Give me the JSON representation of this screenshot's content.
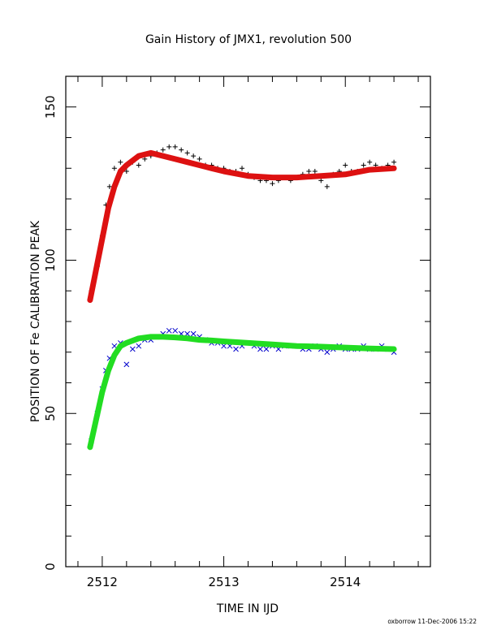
{
  "chart_data": {
    "type": "scatter",
    "title": "Gain History of JMX1, revolution 500",
    "xlabel": "TIME IN IJD",
    "ylabel": "POSITION OF Fe CALIBRATION PEAK",
    "xlim": [
      2511.7,
      2514.7
    ],
    "ylim": [
      0,
      160
    ],
    "x_ticks": [
      "2512",
      "2513",
      "2514"
    ],
    "y_ticks": [
      "0",
      "50",
      "100",
      "150"
    ],
    "grid": false,
    "legend": "none",
    "footer": "oxborrow 11-Dec-2006 15:22",
    "series": [
      {
        "marker": "plus",
        "color": "#000000",
        "x": [
          2511.91,
          2511.96,
          2512.0,
          2512.03,
          2512.06,
          2512.1,
          2512.15,
          2512.2,
          2512.25,
          2512.3,
          2512.35,
          2512.4,
          2512.45,
          2512.5,
          2512.55,
          2512.6,
          2512.65,
          2512.7,
          2512.75,
          2512.8,
          2512.85,
          2512.9,
          2512.95,
          2513.0,
          2513.05,
          2513.1,
          2513.15,
          2513.2,
          2513.25,
          2513.3,
          2513.35,
          2513.4,
          2513.45,
          2513.5,
          2513.55,
          2513.6,
          2513.65,
          2513.7,
          2513.75,
          2513.8,
          2513.85,
          2513.9,
          2513.95,
          2514.0,
          2514.05,
          2514.1,
          2514.15,
          2514.2,
          2514.25,
          2514.3,
          2514.35,
          2514.4
        ],
        "y": [
          90,
          98,
          108,
          118,
          124,
          130,
          132,
          129,
          132,
          131,
          133,
          134,
          135,
          136,
          137,
          137,
          136,
          135,
          134,
          133,
          131,
          131,
          130,
          130,
          129,
          129,
          130,
          128,
          127,
          126,
          126,
          125,
          126,
          127,
          126,
          127,
          128,
          129,
          129,
          126,
          124,
          128,
          129,
          131,
          129,
          129,
          131,
          132,
          131,
          130,
          131,
          132
        ]
      },
      {
        "marker": "cross",
        "color": "#0000cc",
        "x": [
          2511.91,
          2511.96,
          2512.0,
          2512.03,
          2512.06,
          2512.1,
          2512.15,
          2512.2,
          2512.25,
          2512.3,
          2512.35,
          2512.4,
          2512.45,
          2512.5,
          2512.55,
          2512.6,
          2512.65,
          2512.7,
          2512.75,
          2512.8,
          2512.85,
          2512.9,
          2512.95,
          2513.0,
          2513.05,
          2513.1,
          2513.15,
          2513.2,
          2513.25,
          2513.3,
          2513.35,
          2513.4,
          2513.45,
          2513.5,
          2513.55,
          2513.6,
          2513.65,
          2513.7,
          2513.75,
          2513.8,
          2513.85,
          2513.9,
          2513.95,
          2514.0,
          2514.05,
          2514.1,
          2514.15,
          2514.2,
          2514.25,
          2514.3,
          2514.35,
          2514.4
        ],
        "y": [
          41,
          50,
          58,
          64,
          68,
          72,
          73,
          66,
          71,
          72,
          74,
          74,
          75,
          76,
          77,
          77,
          76,
          76,
          76,
          75,
          74,
          73,
          73,
          72,
          72,
          71,
          72,
          73,
          72,
          71,
          71,
          72,
          71,
          72,
          72,
          72,
          71,
          71,
          72,
          71,
          70,
          71,
          72,
          71,
          71,
          71,
          72,
          71,
          71,
          72,
          71,
          70
        ]
      },
      {
        "marker": "fit",
        "color": "#dd1111",
        "x": [
          2511.9,
          2511.95,
          2512.0,
          2512.05,
          2512.1,
          2512.15,
          2512.2,
          2512.3,
          2512.4,
          2512.5,
          2512.6,
          2512.7,
          2512.8,
          2512.9,
          2513.0,
          2513.2,
          2513.4,
          2513.6,
          2513.8,
          2514.0,
          2514.2,
          2514.4
        ],
        "y": [
          87,
          97,
          107,
          117,
          124,
          129,
          131,
          134,
          135,
          134,
          133,
          132,
          131,
          130,
          129,
          127.5,
          127,
          127,
          127.5,
          128,
          129.5,
          130
        ]
      },
      {
        "marker": "fit",
        "color": "#22dd22",
        "x": [
          2511.9,
          2511.95,
          2512.0,
          2512.05,
          2512.1,
          2512.15,
          2512.2,
          2512.3,
          2512.4,
          2512.5,
          2512.6,
          2512.7,
          2512.8,
          2512.9,
          2513.0,
          2513.2,
          2513.4,
          2513.6,
          2513.8,
          2514.0,
          2514.2,
          2514.4
        ],
        "y": [
          39,
          48,
          57,
          64,
          69,
          72,
          73,
          74.5,
          75,
          75,
          74.8,
          74.5,
          74,
          73.8,
          73.5,
          73,
          72.5,
          72,
          71.8,
          71.5,
          71.2,
          71
        ]
      }
    ]
  }
}
